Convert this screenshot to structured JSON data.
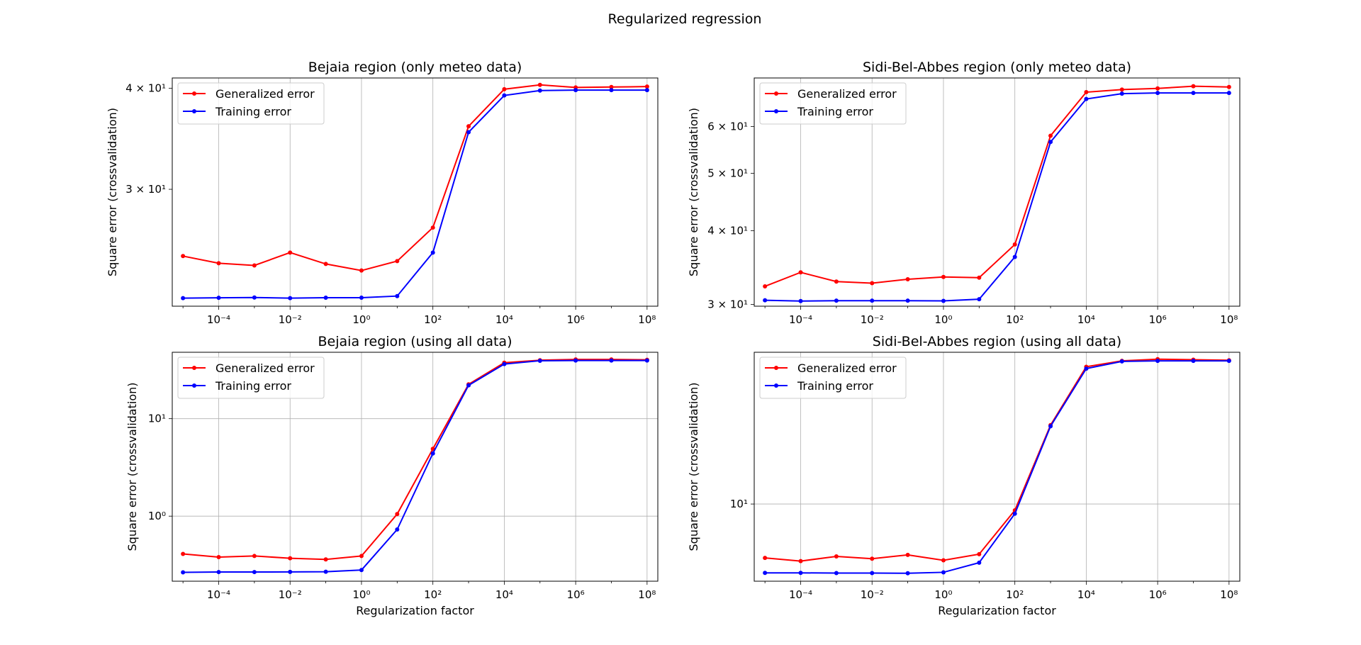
{
  "figure": {
    "title": "Regularized regression"
  },
  "chart_data": [
    {
      "type": "line",
      "title": "Bejaia region (only meteo data)",
      "xlabel": "",
      "ylabel": "Square error (crossvalidation)",
      "xscale": "log",
      "yscale": "log",
      "xlim": [
        5e-06,
        200000000
      ],
      "ylim": [
        21.5,
        41.2
      ],
      "grid": "x-only",
      "legend_position": "top-left",
      "x": [
        1e-05,
        0.0001,
        0.001,
        0.01,
        0.1,
        1,
        10,
        100,
        1000,
        10000,
        100000,
        1000000,
        10000000,
        100000000
      ],
      "xticks": [
        {
          "v": 0.0001,
          "label": "10⁻⁴"
        },
        {
          "v": 0.01,
          "label": "10⁻²"
        },
        {
          "v": 1,
          "label": "10⁰"
        },
        {
          "v": 100,
          "label": "10²"
        },
        {
          "v": 10000,
          "label": "10⁴"
        },
        {
          "v": 1000000,
          "label": "10⁶"
        },
        {
          "v": 100000000,
          "label": "10⁸"
        }
      ],
      "yticks": [
        {
          "v": 30,
          "label": "3 × 10¹"
        },
        {
          "v": 40,
          "label": "4 × 10¹"
        }
      ],
      "series": [
        {
          "name": "Generalized error",
          "color": "#ff0000",
          "values": [
            24.8,
            24.3,
            24.15,
            25.05,
            24.25,
            23.8,
            24.45,
            26.9,
            35.9,
            39.9,
            40.4,
            40.1,
            40.15,
            40.2
          ]
        },
        {
          "name": "Training error",
          "color": "#0000ff",
          "values": [
            22.0,
            22.02,
            22.04,
            22.0,
            22.03,
            22.03,
            22.13,
            25.05,
            35.3,
            39.2,
            39.75,
            39.8,
            39.8,
            39.8
          ]
        }
      ]
    },
    {
      "type": "line",
      "title": "Sidi-Bel-Abbes region (only meteo data)",
      "xlabel": "",
      "ylabel": "Square error (crossvalidation)",
      "xscale": "log",
      "yscale": "log",
      "xlim": [
        5e-06,
        200000000
      ],
      "ylim": [
        29.8,
        72.5
      ],
      "grid": "x-only",
      "legend_position": "top-left",
      "x": [
        1e-05,
        0.0001,
        0.001,
        0.01,
        0.1,
        1,
        10,
        100,
        1000,
        10000,
        100000,
        1000000,
        10000000,
        100000000
      ],
      "xticks": [
        {
          "v": 0.0001,
          "label": "10⁻⁴"
        },
        {
          "v": 0.01,
          "label": "10⁻²"
        },
        {
          "v": 1,
          "label": "10⁰"
        },
        {
          "v": 100,
          "label": "10²"
        },
        {
          "v": 10000,
          "label": "10⁴"
        },
        {
          "v": 1000000,
          "label": "10⁶"
        },
        {
          "v": 100000000,
          "label": "10⁸"
        }
      ],
      "yticks": [
        {
          "v": 30,
          "label": "3 × 10¹"
        },
        {
          "v": 40,
          "label": "4 × 10¹"
        },
        {
          "v": 50,
          "label": "5 × 10¹"
        },
        {
          "v": 60,
          "label": "6 × 10¹"
        }
      ],
      "series": [
        {
          "name": "Generalized error",
          "color": "#ff0000",
          "values": [
            32.2,
            34.0,
            32.8,
            32.6,
            33.1,
            33.4,
            33.3,
            37.9,
            57.9,
            68.6,
            69.3,
            69.6,
            70.2,
            70.0
          ]
        },
        {
          "name": "Training error",
          "color": "#0000ff",
          "values": [
            30.5,
            30.4,
            30.45,
            30.45,
            30.45,
            30.42,
            30.62,
            36.1,
            56.5,
            66.8,
            68.2,
            68.4,
            68.4,
            68.4
          ]
        }
      ]
    },
    {
      "type": "line",
      "title": "Bejaia region (using all data)",
      "xlabel": "Regularization factor",
      "ylabel": "Square error (crossvalidation)",
      "xscale": "log",
      "yscale": "log",
      "xlim": [
        5e-06,
        200000000
      ],
      "ylim": [
        0.215,
        48.0
      ],
      "grid": "both",
      "legend_position": "top-left",
      "x": [
        1e-05,
        0.0001,
        0.001,
        0.01,
        0.1,
        1,
        10,
        100,
        1000,
        10000,
        100000,
        1000000,
        10000000,
        100000000
      ],
      "xticks": [
        {
          "v": 0.0001,
          "label": "10⁻⁴"
        },
        {
          "v": 0.01,
          "label": "10⁻²"
        },
        {
          "v": 1,
          "label": "10⁰"
        },
        {
          "v": 100,
          "label": "10²"
        },
        {
          "v": 10000,
          "label": "10⁴"
        },
        {
          "v": 1000000,
          "label": "10⁶"
        },
        {
          "v": 100000000,
          "label": "10⁸"
        }
      ],
      "yticks": [
        {
          "v": 1,
          "label": "10⁰"
        },
        {
          "v": 10,
          "label": "10¹"
        }
      ],
      "series": [
        {
          "name": "Generalized error",
          "color": "#ff0000",
          "values": [
            0.41,
            0.38,
            0.39,
            0.37,
            0.36,
            0.39,
            1.05,
            4.9,
            22.5,
            37.5,
            39.8,
            40.5,
            40.5,
            40.2
          ]
        },
        {
          "name": "Training error",
          "color": "#0000ff",
          "values": [
            0.265,
            0.267,
            0.267,
            0.268,
            0.269,
            0.28,
            0.73,
            4.4,
            22.0,
            36.3,
            39.3,
            39.5,
            39.5,
            39.5
          ]
        }
      ]
    },
    {
      "type": "line",
      "title": "Sidi-Bel-Abbes region (using all data)",
      "xlabel": "Regularization factor",
      "ylabel": "Square error (crossvalidation)",
      "xscale": "log",
      "yscale": "log",
      "xlim": [
        5e-06,
        200000000
      ],
      "ylim": [
        3.6,
        74.5
      ],
      "grid": "both",
      "legend_position": "top-left",
      "x": [
        1e-05,
        0.0001,
        0.001,
        0.01,
        0.1,
        1,
        10,
        100,
        1000,
        10000,
        100000,
        1000000,
        10000000,
        100000000
      ],
      "xticks": [
        {
          "v": 0.0001,
          "label": "10⁻⁴"
        },
        {
          "v": 0.01,
          "label": "10⁻²"
        },
        {
          "v": 1,
          "label": "10⁰"
        },
        {
          "v": 100,
          "label": "10²"
        },
        {
          "v": 10000,
          "label": "10⁴"
        },
        {
          "v": 1000000,
          "label": "10⁶"
        },
        {
          "v": 100000000,
          "label": "10⁸"
        }
      ],
      "yticks": [
        {
          "v": 10,
          "label": "10¹"
        }
      ],
      "series": [
        {
          "name": "Generalized error",
          "color": "#ff0000",
          "values": [
            4.9,
            4.7,
            5.0,
            4.85,
            5.1,
            4.75,
            5.15,
            9.2,
            28.4,
            61.5,
            66.5,
            68.0,
            67.5,
            67.0
          ]
        },
        {
          "name": "Training error",
          "color": "#0000ff",
          "values": [
            4.02,
            4.02,
            4.01,
            4.01,
            4.0,
            4.05,
            4.6,
            8.8,
            28.0,
            60.0,
            66.0,
            66.5,
            66.5,
            66.5
          ]
        }
      ]
    }
  ]
}
